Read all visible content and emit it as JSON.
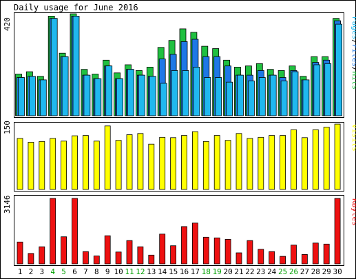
{
  "chart_data": [
    {
      "type": "bar",
      "title": "Daily usage for June 2016",
      "panel": "hits-files-pages",
      "ylabel_parts": [
        "Pages",
        "Files",
        "Hits"
      ],
      "y_max_label": "420",
      "ylim": [
        0,
        440
      ],
      "categories": [
        "1",
        "2",
        "3",
        "4",
        "5",
        "6",
        "7",
        "8",
        "9",
        "10",
        "11",
        "12",
        "13",
        "14",
        "15",
        "16",
        "17",
        "18",
        "19",
        "20",
        "21",
        "22",
        "23",
        "24",
        "25",
        "26",
        "27",
        "28",
        "29",
        "30"
      ],
      "series": [
        {
          "name": "Hits",
          "color": "#20c040",
          "values": [
            180,
            190,
            170,
            430,
            270,
            440,
            200,
            180,
            240,
            185,
            220,
            195,
            210,
            295,
            325,
            375,
            360,
            300,
            290,
            240,
            210,
            215,
            225,
            200,
            195,
            215,
            170,
            255,
            255,
            420
          ]
        },
        {
          "name": "Files",
          "color": "#1e78e6",
          "values": [
            165,
            170,
            155,
            420,
            255,
            430,
            175,
            160,
            215,
            160,
            200,
            175,
            170,
            245,
            265,
            320,
            330,
            255,
            255,
            215,
            175,
            175,
            195,
            175,
            165,
            195,
            155,
            230,
            240,
            410
          ]
        },
        {
          "name": "Pages",
          "color": "#20b8ef",
          "values": [
            165,
            170,
            155,
            420,
            255,
            430,
            175,
            160,
            215,
            160,
            200,
            175,
            170,
            140,
            195,
            195,
            210,
            165,
            165,
            145,
            175,
            150,
            165,
            175,
            150,
            190,
            155,
            220,
            225,
            395
          ]
        }
      ]
    },
    {
      "type": "bar",
      "panel": "visits",
      "ylabel": "Visits",
      "y_max_label": "150",
      "ylim": [
        0,
        175
      ],
      "categories": [
        "1",
        "2",
        "3",
        "4",
        "5",
        "6",
        "7",
        "8",
        "9",
        "10",
        "11",
        "12",
        "13",
        "14",
        "15",
        "16",
        "17",
        "18",
        "19",
        "20",
        "21",
        "22",
        "23",
        "24",
        "25",
        "26",
        "27",
        "28",
        "29",
        "30"
      ],
      "series": [
        {
          "name": "Visits",
          "color": "#ffff00",
          "values": [
            135,
            125,
            127,
            135,
            128,
            142,
            143,
            128,
            168,
            130,
            145,
            148,
            120,
            138,
            137,
            143,
            153,
            127,
            143,
            130,
            148,
            135,
            138,
            143,
            143,
            158,
            137,
            158,
            165,
            173
          ]
        }
      ]
    },
    {
      "type": "bar",
      "panel": "kbytes",
      "ylabel": "KBytes",
      "y_max_label": "3146",
      "ylim": [
        0,
        3146
      ],
      "categories": [
        "1",
        "2",
        "3",
        "4",
        "5",
        "6",
        "7",
        "8",
        "9",
        "10",
        "11",
        "12",
        "13",
        "14",
        "15",
        "16",
        "17",
        "18",
        "19",
        "20",
        "21",
        "22",
        "23",
        "24",
        "25",
        "26",
        "27",
        "28",
        "29",
        "30"
      ],
      "series": [
        {
          "name": "KBytes",
          "color": "#ee1111",
          "values": [
            1050,
            500,
            820,
            3146,
            1300,
            3146,
            590,
            380,
            1350,
            570,
            1120,
            820,
            420,
            1430,
            870,
            1790,
            1960,
            1280,
            1250,
            1180,
            530,
            1120,
            700,
            590,
            360,
            900,
            450,
            1000,
            950,
            3146
          ]
        }
      ]
    }
  ],
  "weekend_days": [
    "4",
    "5",
    "11",
    "12",
    "18",
    "19",
    "25",
    "26"
  ],
  "colors": {
    "background": "#ffffff",
    "frame": "#000000",
    "bar_outline": "#000000",
    "weekday_label": "#000000",
    "weekend_label": "#00a000",
    "hits": "#20c040",
    "files": "#1e78e6",
    "pages": "#20b8ef",
    "visits": "#ffff00",
    "kbytes": "#ee1111"
  }
}
